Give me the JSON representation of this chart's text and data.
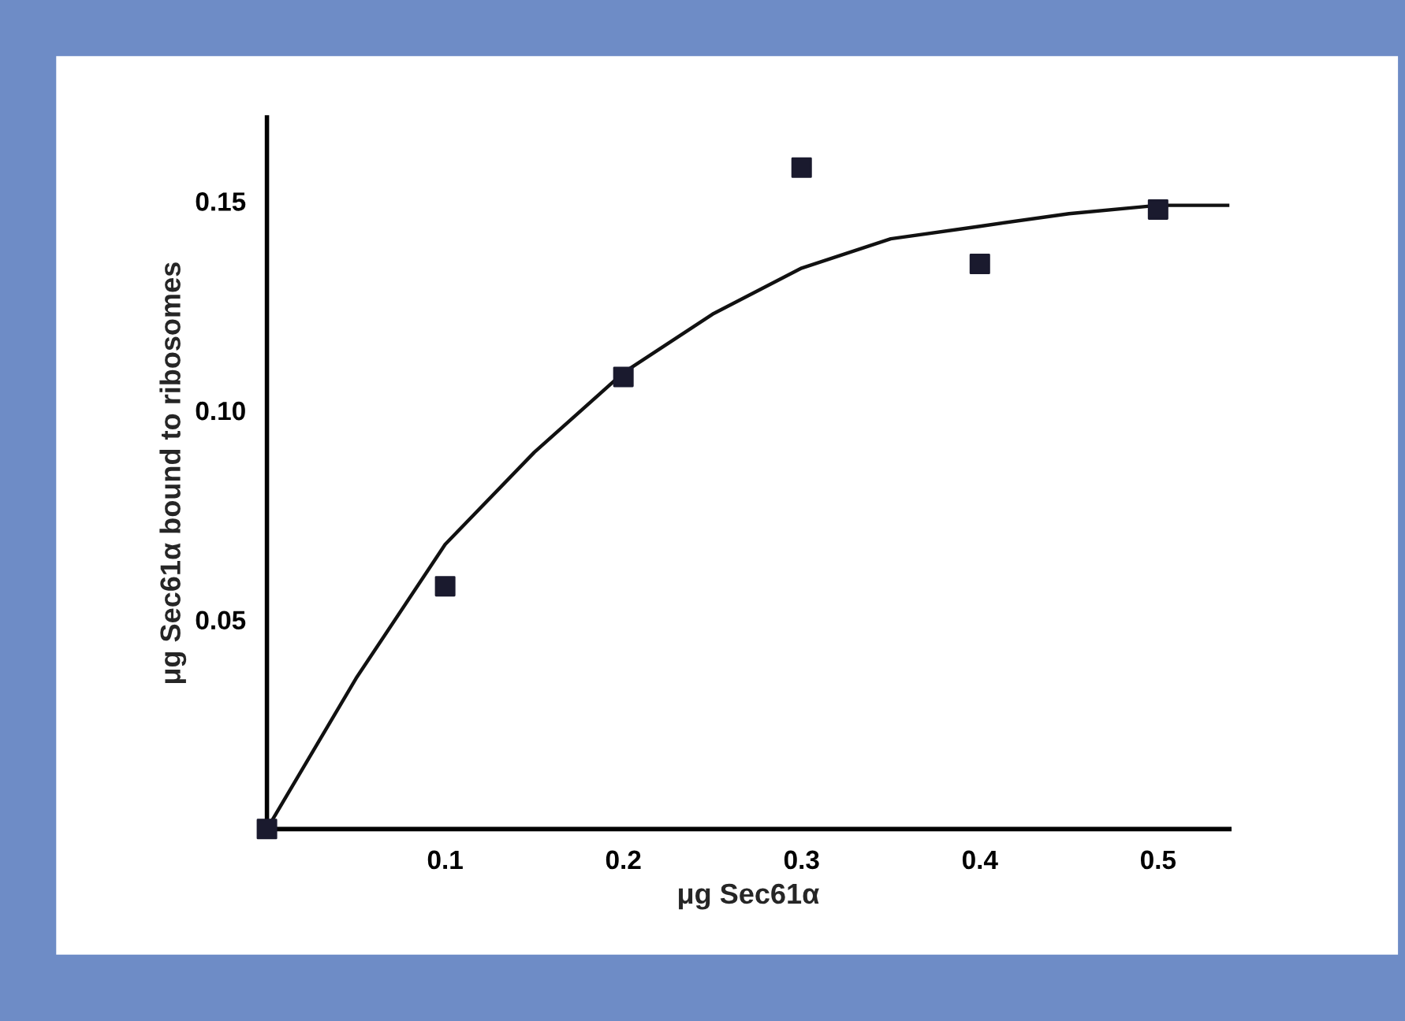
{
  "chart_data": {
    "type": "scatter",
    "xlabel": "μg Sec61α",
    "ylabel": "μg Sec61α bound to ribosomes",
    "xlim": [
      0,
      0.54
    ],
    "ylim": [
      0,
      0.17
    ],
    "xticks": [
      0.1,
      0.2,
      0.3,
      0.4,
      0.5
    ],
    "yticks": [
      0.05,
      {
        "value": 0.1,
        "label": "0.10"
      },
      0.15
    ],
    "grid": false,
    "series": [
      {
        "color": "#1a1a2e",
        "marker": "square",
        "x": [
          0,
          0.1,
          0.2,
          0.3,
          0.4,
          0.5
        ],
        "values": [
          0,
          0.058,
          0.108,
          0.158,
          0.135,
          0.148
        ]
      },
      {
        "type": "line",
        "color": "#111111",
        "marker": "none",
        "line_style": "solid",
        "x": [
          0,
          0.05,
          0.1,
          0.15,
          0.2,
          0.25,
          0.3,
          0.35,
          0.4,
          0.45,
          0.5,
          0.54
        ],
        "values": [
          0,
          0.036,
          0.068,
          0.09,
          0.109,
          0.123,
          0.134,
          0.141,
          0.144,
          0.147,
          0.149,
          0.149
        ]
      }
    ]
  }
}
